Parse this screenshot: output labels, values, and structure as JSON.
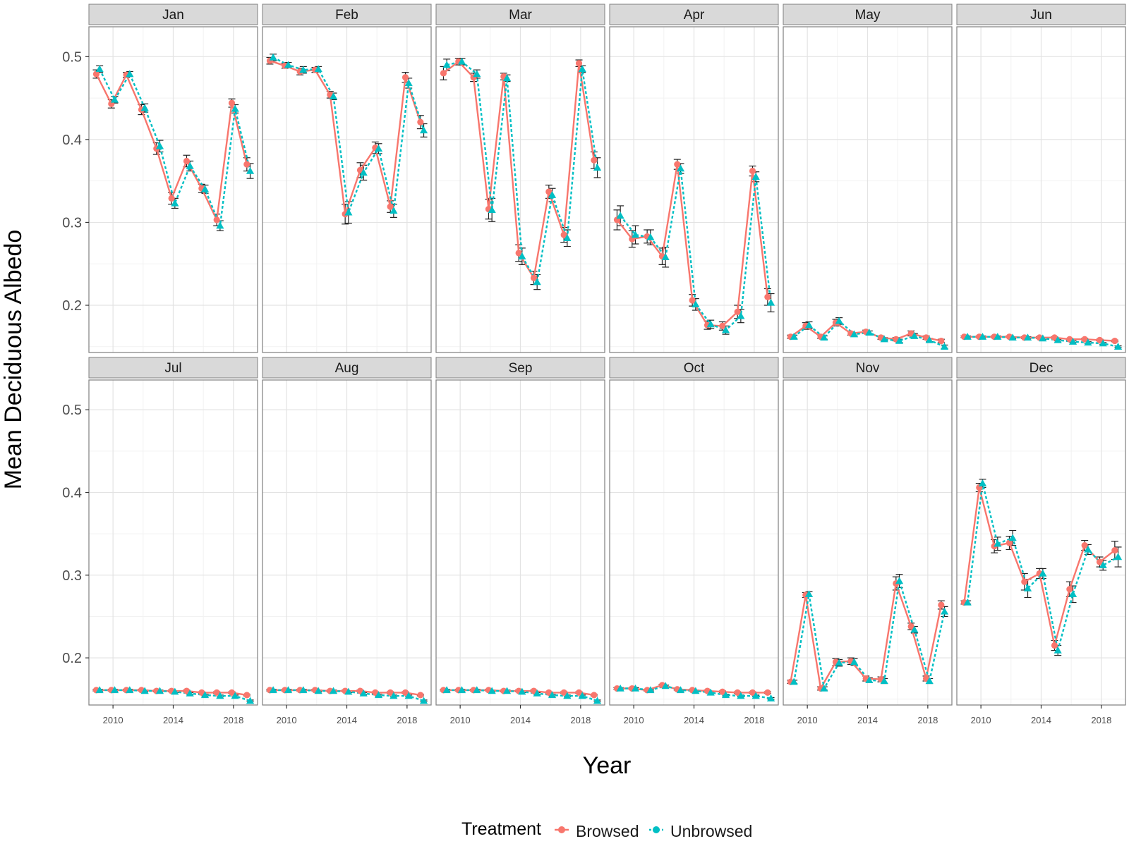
{
  "colors": {
    "browsed": "#F8766D",
    "unbrowsed": "#00BFC4",
    "strip_fill": "#D9D9D9",
    "panel_border": "#7F7F7F",
    "grid_major": "#E3E3E3",
    "grid_minor": "#F2F2F2",
    "error_bar": "#222222"
  },
  "chart_data": {
    "type": "line",
    "title": "",
    "xlabel": "Year",
    "ylabel": "Mean Deciduous Albedo",
    "ylim": [
      0.143,
      0.536
    ],
    "xlim": [
      2008.4,
      2019.6
    ],
    "yticks": [
      0.2,
      0.3,
      0.4,
      0.5
    ],
    "ytick_labels": [
      "0.2",
      "0.3",
      "0.4",
      "0.5"
    ],
    "xticks": [
      2010,
      2014,
      2018
    ],
    "xtick_labels": [
      "2010",
      "2014",
      "2018"
    ],
    "grid": true,
    "legend": {
      "title": "Treatment",
      "position": "bottom",
      "entries": [
        "Browsed",
        "Unbrowsed"
      ]
    },
    "years": [
      2009,
      2010,
      2011,
      2012,
      2013,
      2014,
      2015,
      2016,
      2017,
      2018,
      2019
    ],
    "facets": [
      {
        "label": "Jan",
        "browsed": [
          0.479,
          0.443,
          0.478,
          0.436,
          0.389,
          0.329,
          0.374,
          0.341,
          0.303,
          0.444,
          0.37
        ],
        "unbrowsed": [
          0.485,
          0.448,
          0.479,
          0.438,
          0.392,
          0.323,
          0.368,
          0.34,
          0.296,
          0.437,
          0.362
        ],
        "browsed_err": [
          0.005,
          0.005,
          0.003,
          0.006,
          0.007,
          0.007,
          0.007,
          0.005,
          0.007,
          0.005,
          0.008
        ],
        "unbrowsed_err": [
          0.004,
          0.004,
          0.003,
          0.005,
          0.007,
          0.006,
          0.006,
          0.005,
          0.006,
          0.005,
          0.009
        ]
      },
      {
        "label": "Feb",
        "browsed": [
          0.495,
          0.489,
          0.482,
          0.484,
          0.454,
          0.31,
          0.363,
          0.39,
          0.319,
          0.475,
          0.421
        ],
        "unbrowsed": [
          0.499,
          0.49,
          0.484,
          0.485,
          0.452,
          0.312,
          0.36,
          0.389,
          0.314,
          0.468,
          0.411
        ],
        "browsed_err": [
          0.004,
          0.003,
          0.004,
          0.003,
          0.004,
          0.012,
          0.009,
          0.007,
          0.007,
          0.006,
          0.008
        ],
        "unbrowsed_err": [
          0.004,
          0.003,
          0.004,
          0.003,
          0.004,
          0.013,
          0.009,
          0.006,
          0.008,
          0.006,
          0.008
        ]
      },
      {
        "label": "Mar",
        "browsed": [
          0.48,
          0.494,
          0.475,
          0.316,
          0.476,
          0.263,
          0.233,
          0.337,
          0.285,
          0.492,
          0.375
        ],
        "unbrowsed": [
          0.49,
          0.494,
          0.479,
          0.315,
          0.474,
          0.259,
          0.228,
          0.333,
          0.281,
          0.485,
          0.366
        ],
        "browsed_err": [
          0.008,
          0.004,
          0.005,
          0.012,
          0.004,
          0.01,
          0.008,
          0.008,
          0.009,
          0.004,
          0.01
        ],
        "unbrowsed_err": [
          0.007,
          0.004,
          0.005,
          0.014,
          0.004,
          0.01,
          0.009,
          0.008,
          0.01,
          0.004,
          0.012
        ]
      },
      {
        "label": "Apr",
        "browsed": [
          0.303,
          0.28,
          0.283,
          0.259,
          0.37,
          0.206,
          0.176,
          0.175,
          0.192,
          0.362,
          0.21
        ],
        "unbrowsed": [
          0.308,
          0.285,
          0.282,
          0.258,
          0.365,
          0.201,
          0.177,
          0.17,
          0.187,
          0.355,
          0.203
        ],
        "browsed_err": [
          0.012,
          0.01,
          0.008,
          0.01,
          0.006,
          0.007,
          0.005,
          0.005,
          0.008,
          0.006,
          0.01
        ],
        "unbrowsed_err": [
          0.012,
          0.011,
          0.009,
          0.012,
          0.006,
          0.007,
          0.005,
          0.005,
          0.008,
          0.006,
          0.011
        ]
      },
      {
        "label": "May",
        "browsed": [
          0.162,
          0.175,
          0.162,
          0.179,
          0.166,
          0.168,
          0.161,
          0.159,
          0.166,
          0.161,
          0.157
        ],
        "unbrowsed": [
          0.162,
          0.176,
          0.161,
          0.181,
          0.165,
          0.167,
          0.159,
          0.157,
          0.163,
          0.158,
          0.15
        ],
        "browsed_err": [
          0.002,
          0.004,
          0.002,
          0.004,
          0.002,
          0.002,
          0.002,
          0.002,
          0.003,
          0.002,
          0.002
        ],
        "unbrowsed_err": [
          0.002,
          0.004,
          0.002,
          0.004,
          0.002,
          0.002,
          0.002,
          0.002,
          0.003,
          0.002,
          0.002
        ]
      },
      {
        "label": "Jun",
        "browsed": [
          0.162,
          0.162,
          0.162,
          0.162,
          0.161,
          0.161,
          0.161,
          0.159,
          0.159,
          0.158,
          0.157
        ],
        "unbrowsed": [
          0.162,
          0.162,
          0.162,
          0.161,
          0.161,
          0.16,
          0.158,
          0.156,
          0.155,
          0.154,
          0.15
        ],
        "browsed_err": [
          0.001,
          0.001,
          0.001,
          0.001,
          0.001,
          0.001,
          0.001,
          0.001,
          0.001,
          0.001,
          0.001
        ],
        "unbrowsed_err": [
          0.001,
          0.001,
          0.001,
          0.001,
          0.001,
          0.001,
          0.001,
          0.001,
          0.001,
          0.001,
          0.001
        ]
      },
      {
        "label": "Jul",
        "browsed": [
          0.161,
          0.161,
          0.161,
          0.161,
          0.16,
          0.16,
          0.16,
          0.158,
          0.158,
          0.158,
          0.155
        ],
        "unbrowsed": [
          0.161,
          0.161,
          0.161,
          0.16,
          0.16,
          0.159,
          0.157,
          0.155,
          0.154,
          0.154,
          0.148
        ],
        "browsed_err": [
          0.001,
          0.001,
          0.001,
          0.001,
          0.001,
          0.001,
          0.001,
          0.001,
          0.001,
          0.001,
          0.001
        ],
        "unbrowsed_err": [
          0.001,
          0.001,
          0.001,
          0.001,
          0.001,
          0.001,
          0.001,
          0.001,
          0.001,
          0.001,
          0.001
        ]
      },
      {
        "label": "Aug",
        "browsed": [
          0.161,
          0.161,
          0.161,
          0.161,
          0.16,
          0.16,
          0.16,
          0.158,
          0.158,
          0.158,
          0.155
        ],
        "unbrowsed": [
          0.161,
          0.161,
          0.161,
          0.16,
          0.16,
          0.159,
          0.157,
          0.155,
          0.154,
          0.154,
          0.148
        ],
        "browsed_err": [
          0.001,
          0.001,
          0.001,
          0.001,
          0.001,
          0.001,
          0.001,
          0.001,
          0.001,
          0.001,
          0.001
        ],
        "unbrowsed_err": [
          0.001,
          0.001,
          0.001,
          0.001,
          0.001,
          0.001,
          0.001,
          0.001,
          0.001,
          0.001,
          0.001
        ]
      },
      {
        "label": "Sep",
        "browsed": [
          0.161,
          0.161,
          0.161,
          0.161,
          0.16,
          0.16,
          0.16,
          0.158,
          0.158,
          0.158,
          0.155
        ],
        "unbrowsed": [
          0.161,
          0.161,
          0.161,
          0.16,
          0.16,
          0.159,
          0.157,
          0.155,
          0.154,
          0.154,
          0.148
        ],
        "browsed_err": [
          0.001,
          0.001,
          0.001,
          0.001,
          0.001,
          0.001,
          0.001,
          0.001,
          0.001,
          0.001,
          0.001
        ],
        "unbrowsed_err": [
          0.001,
          0.001,
          0.001,
          0.001,
          0.001,
          0.001,
          0.001,
          0.001,
          0.001,
          0.001,
          0.001
        ]
      },
      {
        "label": "Oct",
        "browsed": [
          0.163,
          0.163,
          0.161,
          0.167,
          0.162,
          0.161,
          0.16,
          0.159,
          0.158,
          0.158,
          0.158
        ],
        "unbrowsed": [
          0.163,
          0.163,
          0.161,
          0.166,
          0.161,
          0.16,
          0.158,
          0.155,
          0.154,
          0.154,
          0.151
        ],
        "browsed_err": [
          0.001,
          0.001,
          0.001,
          0.001,
          0.001,
          0.001,
          0.001,
          0.001,
          0.001,
          0.001,
          0.001
        ],
        "unbrowsed_err": [
          0.001,
          0.001,
          0.001,
          0.001,
          0.001,
          0.001,
          0.001,
          0.001,
          0.001,
          0.001,
          0.001
        ]
      },
      {
        "label": "Nov",
        "browsed": [
          0.171,
          0.276,
          0.163,
          0.195,
          0.196,
          0.175,
          0.174,
          0.29,
          0.238,
          0.175,
          0.264
        ],
        "unbrowsed": [
          0.171,
          0.277,
          0.163,
          0.194,
          0.195,
          0.173,
          0.172,
          0.293,
          0.234,
          0.172,
          0.256
        ],
        "browsed_err": [
          0.002,
          0.003,
          0.002,
          0.004,
          0.004,
          0.003,
          0.003,
          0.008,
          0.004,
          0.003,
          0.005
        ],
        "unbrowsed_err": [
          0.002,
          0.003,
          0.002,
          0.004,
          0.004,
          0.003,
          0.003,
          0.008,
          0.004,
          0.003,
          0.006
        ]
      },
      {
        "label": "Dec",
        "browsed": [
          0.267,
          0.406,
          0.335,
          0.339,
          0.292,
          0.302,
          0.215,
          0.283,
          0.336,
          0.316,
          0.33
        ],
        "unbrowsed": [
          0.267,
          0.411,
          0.338,
          0.345,
          0.284,
          0.302,
          0.209,
          0.277,
          0.331,
          0.312,
          0.322
        ],
        "browsed_err": [
          0.002,
          0.005,
          0.008,
          0.008,
          0.01,
          0.006,
          0.006,
          0.009,
          0.006,
          0.006,
          0.011
        ],
        "unbrowsed_err": [
          0.002,
          0.005,
          0.008,
          0.009,
          0.011,
          0.006,
          0.006,
          0.01,
          0.006,
          0.006,
          0.012
        ]
      }
    ]
  }
}
